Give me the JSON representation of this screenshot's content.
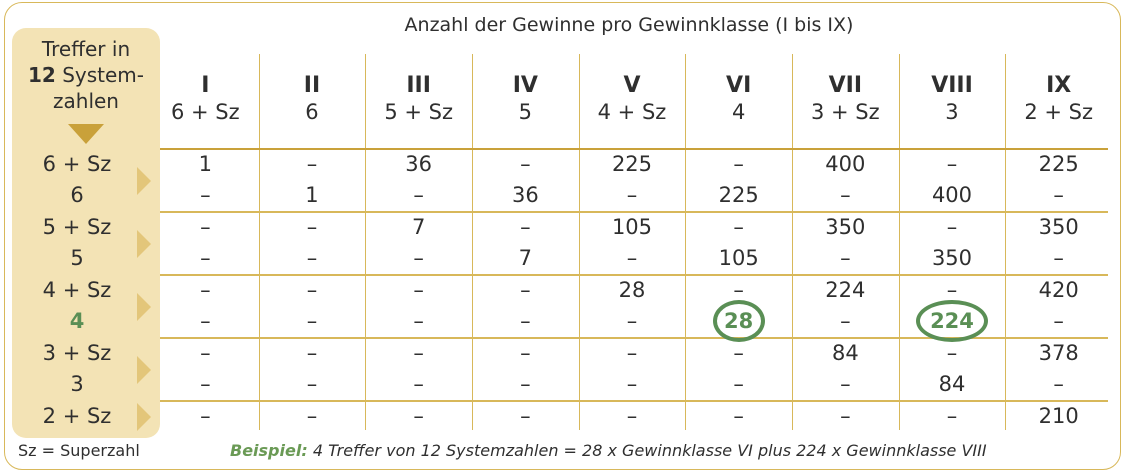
{
  "caption": "Anzahl der Gewinne pro Gewinnklasse (I bis IX)",
  "treffer_header": {
    "line1": "Treffer in",
    "line2_bold": "12",
    "line2_rest": " System-",
    "line3": "zahlen"
  },
  "columns": [
    {
      "roman": "I",
      "sub": "6 + Sz"
    },
    {
      "roman": "II",
      "sub": "6"
    },
    {
      "roman": "III",
      "sub": "5 + Sz"
    },
    {
      "roman": "IV",
      "sub": "5"
    },
    {
      "roman": "V",
      "sub": "4 + Sz"
    },
    {
      "roman": "VI",
      "sub": "4"
    },
    {
      "roman": "VII",
      "sub": "3 + Sz"
    },
    {
      "roman": "VIII",
      "sub": "3"
    },
    {
      "roman": "IX",
      "sub": "2 + Sz"
    }
  ],
  "rows": [
    {
      "label": "6 + Sz",
      "cells": [
        "1",
        "–",
        "36",
        "–",
        "225",
        "–",
        "400",
        "–",
        "225"
      ]
    },
    {
      "label": "6",
      "cells": [
        "–",
        "1",
        "–",
        "36",
        "–",
        "225",
        "–",
        "400",
        "–"
      ]
    },
    {
      "label": "5 + Sz",
      "cells": [
        "–",
        "–",
        "7",
        "–",
        "105",
        "–",
        "350",
        "–",
        "350"
      ]
    },
    {
      "label": "5",
      "cells": [
        "–",
        "–",
        "–",
        "7",
        "–",
        "105",
        "–",
        "350",
        "–"
      ]
    },
    {
      "label": "4 + Sz",
      "cells": [
        "–",
        "–",
        "–",
        "–",
        "28",
        "–",
        "224",
        "–",
        "420"
      ]
    },
    {
      "label": "4",
      "cells": [
        "–",
        "–",
        "–",
        "–",
        "–",
        "28",
        "–",
        "224",
        "–"
      ]
    },
    {
      "label": "3 + Sz",
      "cells": [
        "–",
        "–",
        "–",
        "–",
        "–",
        "–",
        "84",
        "–",
        "378"
      ]
    },
    {
      "label": "3",
      "cells": [
        "–",
        "–",
        "–",
        "–",
        "–",
        "–",
        "–",
        "84",
        "–"
      ]
    },
    {
      "label": "2 + Sz",
      "cells": [
        "–",
        "–",
        "–",
        "–",
        "–",
        "–",
        "–",
        "–",
        "210"
      ]
    }
  ],
  "highlight": {
    "row": 5,
    "cols": [
      5,
      7
    ],
    "color": "#5a8f55"
  },
  "legend": "Sz = Superzahl",
  "example": {
    "label": "Beispiel:",
    "text": " 4 Treffer von 12 Systemzahlen = 28 x Gewinnklasse VI plus 224 x Gewinnklasse VIII"
  },
  "colors": {
    "accent_gold": "#d8b85a",
    "panel_bg": "#f3e3b5",
    "green": "#5a8f55"
  }
}
